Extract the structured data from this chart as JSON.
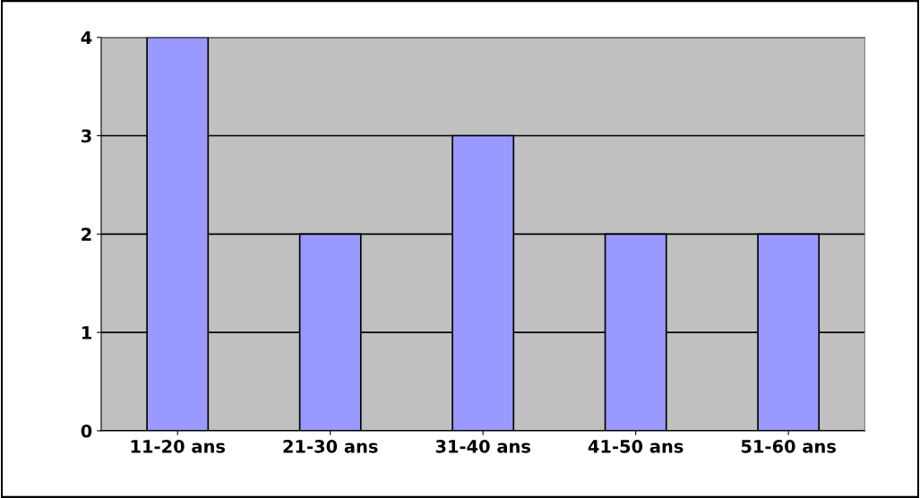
{
  "chart_data": {
    "type": "bar",
    "categories": [
      "11-20 ans",
      "21-30 ans",
      "31-40 ans",
      "41-50 ans",
      "51-60 ans"
    ],
    "values": [
      4,
      2,
      3,
      2,
      2
    ],
    "color": "#9999ff",
    "ylim": [
      0,
      4
    ],
    "yticks": [
      0,
      1,
      2,
      3,
      4
    ],
    "grid": "y",
    "legend": false
  }
}
